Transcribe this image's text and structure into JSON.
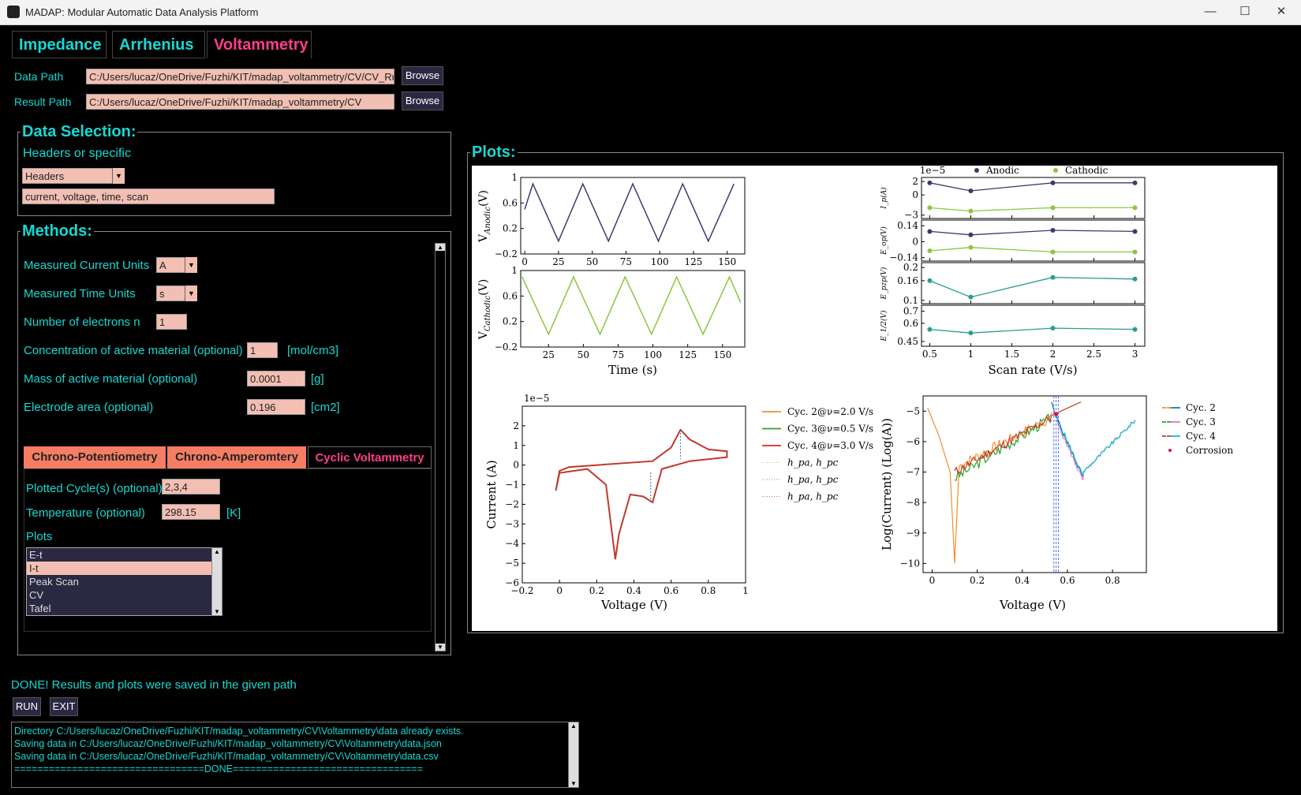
{
  "window": {
    "title": "MADAP: Modular Automatic Data Analysis Platform",
    "minimize": "—",
    "maximize": "☐",
    "close": "✕"
  },
  "tabs": [
    {
      "label": "Impedance",
      "color": "#16d9d3"
    },
    {
      "label": "Arrhenius",
      "color": "#16d9d3"
    },
    {
      "label": "Voltammetry",
      "color": "#ff3d8b"
    }
  ],
  "paths": {
    "data_label": "Data Path",
    "data_value": "C:/Users/lucaz/OneDrive/Fuzhi/KIT/madap_voltammetry/CV/CV_Ru",
    "result_label": "Result Path",
    "result_value": "C:/Users/lucaz/OneDrive/Fuzhi/KIT/madap_voltammetry/CV",
    "browse_label": "Browse"
  },
  "data_selection": {
    "title": "Data Selection:",
    "subtitle": "Headers or specific",
    "select_value": "Headers",
    "headers_value": "current, voltage, time, scan"
  },
  "methods": {
    "title": "Methods:",
    "current_units_label": "Measured Current Units",
    "current_units_value": "A",
    "time_units_label": "Measured Time Units",
    "time_units_value": "s",
    "electrons_label": "Number of electrons n",
    "electrons_value": "1",
    "conc_label": "Concentration of active material (optional)",
    "conc_value": "1",
    "conc_unit": "[mol/cm3]",
    "mass_label": "Mass of active material (optional)",
    "mass_value": "0.0001",
    "mass_unit": "[g]",
    "area_label": "Electrode area (optional)",
    "area_value": "0.196",
    "area_unit": "[cm2]",
    "subtabs": [
      {
        "label": "Chrono-Potentiometry"
      },
      {
        "label": "Chrono-Amperomtery"
      },
      {
        "label": "Cyclic Voltammetry"
      }
    ],
    "cycles_label": "Plotted Cycle(s) (optional)",
    "cycles_value": "2,3,4",
    "temp_label": "Temperature (optional)",
    "temp_value": "298.15",
    "temp_unit": "[K]",
    "plots_label": "Plots",
    "plots_list": [
      "E-t",
      "I-t",
      "Peak Scan",
      "CV",
      "Tafel"
    ],
    "plots_selected": "I-t"
  },
  "status": {
    "message": "DONE! Results and plots were saved in the given path",
    "run_label": "RUN",
    "exit_label": "EXIT",
    "log": [
      "Directory C:/Users/lucaz/OneDrive/Fuzhi/KIT/madap_voltammetry/CV\\Voltammetry\\data already exists.",
      "Saving data in C:/Users/lucaz/OneDrive/Fuzhi/KIT/madap_voltammetry/CV\\Voltammetry\\data.json",
      "Saving data in C:/Users/lucaz/OneDrive/Fuzhi/KIT/madap_voltammetry/CV\\Voltammetry\\data.csv",
      "=================================DONE================================="
    ]
  },
  "plots_panel": {
    "title": "Plots:",
    "anodic_ylabel": "V",
    "cathodic_ylabel": "V",
    "time_xlabel": "Time (s)",
    "scan_xlabel": "Scan rate (V/s)",
    "legend_anodic": "Anodic",
    "legend_cathodic": "Cathodic",
    "offset_label": "1e−5",
    "cv_xlabel": "Voltage (V)",
    "cv_ylabel": "Current (A)",
    "tafel_xlabel": "Voltage (V)",
    "tafel_ylabel": "Log(Current) (Log(A))",
    "cv_legend": [
      "Cyc. 2@ν=2.0 V/s",
      "Cyc. 3@ν=0.5 V/s",
      "Cyc. 4@ν=3.0 V/s",
      "h_pa, h_pc",
      "h_pa, h_pc",
      "h_pa, h_pc"
    ],
    "tafel_legend": [
      "Cyc. 2",
      "Cyc. 3",
      "Cyc. 4",
      "Corrosion"
    ],
    "colors": {
      "anodic": "#3d3a6e",
      "cathodic": "#8cc63f",
      "teal": "#2a9d8f",
      "cv_red": "#c0392b",
      "orange": "#f28e2b",
      "green": "#2ca02c",
      "red": "#d62728",
      "blue": "#1f77b4",
      "magenta": "#e377c2",
      "cyan": "#17becf"
    }
  },
  "chart_data": [
    {
      "type": "line",
      "name": "V_Anodic vs time",
      "ylabel": "V_Anodic(V)",
      "x_ticks": [
        0,
        25,
        50,
        75,
        100,
        125,
        150
      ],
      "y_ticks": [
        -0.2,
        0.2,
        0.6,
        1.0
      ],
      "xlim": [
        -3,
        163
      ],
      "ylim": [
        -0.2,
        1.0
      ],
      "x": [
        0,
        6,
        25,
        43,
        62,
        80,
        99,
        117,
        136,
        155
      ],
      "y": [
        0.5,
        0.9,
        0.0,
        0.9,
        0.0,
        0.9,
        0.0,
        0.9,
        0.0,
        0.9
      ]
    },
    {
      "type": "line",
      "name": "V_Cathodic vs time",
      "ylabel": "V_Cathodic(V)",
      "x_ticks": [
        25,
        50,
        75,
        100,
        125,
        150
      ],
      "y_ticks": [
        -0.2,
        0.2,
        0.6,
        1.0
      ],
      "xlim": [
        5,
        166
      ],
      "ylim": [
        -0.2,
        1.0
      ],
      "x": [
        6,
        25,
        43,
        62,
        80,
        99,
        117,
        136,
        155,
        163
      ],
      "y": [
        0.9,
        0.0,
        0.9,
        0.0,
        0.9,
        0.0,
        0.9,
        0.0,
        0.9,
        0.5
      ]
    },
    {
      "type": "scatter",
      "name": "Peak scan",
      "x": [
        0.5,
        1.0,
        2.0,
        3.0
      ],
      "x_ticks": [
        0.5,
        1.0,
        1.5,
        2.0,
        2.5,
        3.0
      ],
      "series": [
        {
          "name": "Ip Anodic",
          "values": [
            1.8,
            0.6,
            1.8,
            1.8
          ],
          "ylim": [
            -3.5,
            2.6
          ],
          "ticks": [
            2,
            0,
            -3
          ]
        },
        {
          "name": "Ip Cathodic",
          "values": [
            -1.9,
            -2.4,
            -1.9,
            -1.9
          ],
          "ylim": [
            -3.5,
            2.6
          ],
          "ticks": [
            2,
            0,
            -3
          ]
        },
        {
          "name": "Eop Anodic",
          "values": [
            0.09,
            0.06,
            0.1,
            0.09
          ],
          "ylim": [
            -0.17,
            0.19
          ],
          "ticks": [
            0.14,
            0.0,
            -0.14
          ]
        },
        {
          "name": "Eop Cathodic",
          "values": [
            -0.08,
            -0.05,
            -0.09,
            -0.09
          ],
          "ylim": [
            -0.17,
            0.19
          ],
          "ticks": [
            0.14,
            0.0,
            -0.14
          ]
        },
        {
          "name": "Epzp",
          "values": [
            0.16,
            0.11,
            0.17,
            0.165
          ],
          "ylim": [
            0.09,
            0.215
          ],
          "ticks": [
            0.2,
            0.16,
            0.1
          ]
        },
        {
          "name": "E1/2",
          "values": [
            0.55,
            0.52,
            0.56,
            0.55
          ],
          "ylim": [
            0.41,
            0.75
          ],
          "ticks": [
            0.7,
            0.6,
            0.45
          ]
        }
      ],
      "ylabels": [
        "I_p(A)",
        "E_op(V)",
        "E_pzp(V)",
        "E_1/2(V)"
      ]
    },
    {
      "type": "line",
      "name": "CV",
      "x_ticks": [
        -0.2,
        0.0,
        0.2,
        0.4,
        0.6,
        0.8,
        1.0
      ],
      "y_ticks": [
        2,
        1,
        0,
        -1,
        -2,
        -3,
        -4,
        -5,
        -6
      ],
      "xlim": [
        -0.2,
        1.0
      ],
      "ylim": [
        -6,
        3
      ],
      "x": [
        -0.02,
        0.0,
        0.05,
        0.2,
        0.5,
        0.6,
        0.65,
        0.7,
        0.8,
        0.9,
        0.9,
        0.7,
        0.55,
        0.5,
        0.45,
        0.38,
        0.32,
        0.3,
        0.25,
        0.15,
        0.0,
        -0.02
      ],
      "y": [
        -1.3,
        -0.3,
        -0.1,
        0.0,
        0.2,
        0.9,
        1.8,
        1.3,
        0.8,
        0.7,
        0.4,
        0.2,
        -0.2,
        -1.9,
        -1.6,
        -1.5,
        -3.5,
        -4.8,
        -1.0,
        -0.2,
        -0.4,
        -1.3
      ]
    },
    {
      "type": "line",
      "name": "Tafel",
      "x_ticks": [
        0.0,
        0.2,
        0.4,
        0.6,
        0.8
      ],
      "y_ticks": [
        -5,
        -6,
        -7,
        -8,
        -9,
        -10
      ],
      "xlim": [
        -0.04,
        0.95
      ],
      "ylim": [
        -10.3,
        -4.5
      ],
      "corrosion": {
        "x": 0.55,
        "y": -5.1
      }
    }
  ]
}
